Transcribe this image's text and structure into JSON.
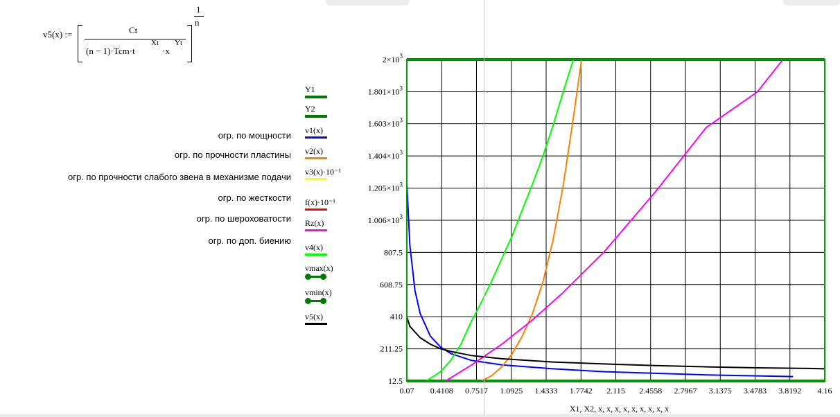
{
  "formula": {
    "lhs": "v5(x) :=",
    "numerator": "Ct",
    "denominator_main": "(n − 1)·Tcm·t",
    "exp_t": "Xt",
    "mid": "·x",
    "exp_x": "Yt",
    "outer_num": "1",
    "outer_den": "n"
  },
  "annotations": [
    {
      "text": "огр. по мощности",
      "series": "v1(x)"
    },
    {
      "text": "огр. по прочности пластины",
      "series": "v2(x)"
    },
    {
      "text": "огр. по прочности слабого звена в механизме подачи",
      "series": "v3(x)·10⁻¹"
    },
    {
      "text": "огр. по жесткости",
      "series": "f(x)·10⁻¹"
    },
    {
      "text": "огр. по шероховатости",
      "series": "Rz(x)"
    },
    {
      "text": "огр. по доп. биению",
      "series": "v4(x)"
    }
  ],
  "legend": [
    {
      "label": "Y1",
      "color": "#007a00",
      "style": "thick"
    },
    {
      "label": "Y2",
      "color": "#007a00",
      "style": "thick"
    },
    {
      "label": "v1(x)",
      "color": "#0000ff",
      "style": "line"
    },
    {
      "label": "v2(x)",
      "color": "#ff8000",
      "style": "line"
    },
    {
      "label": "v3(x)·10⁻¹",
      "color": "#ffff00",
      "style": "line"
    },
    {
      "label": "f(x)·10⁻¹",
      "color": "#ff0000",
      "style": "line"
    },
    {
      "label": "Rz(x)",
      "color": "#ff00ff",
      "style": "line"
    },
    {
      "label": "v4(x)",
      "color": "#00ff00",
      "style": "line"
    },
    {
      "label": "vmax(x)",
      "color": "#007a00",
      "style": "dots"
    },
    {
      "label": "vmin(x)",
      "color": "#007a00",
      "style": "dots"
    },
    {
      "label": "v5(x)",
      "color": "#000000",
      "style": "line"
    }
  ],
  "chart_data": {
    "type": "line",
    "xlabel": "X1, X2, x, x, x, x, x, x, x, x, x",
    "xlim": [
      0.07,
      4.16
    ],
    "ylim": [
      12.5,
      2000
    ],
    "xticks": [
      0.07,
      0.4108,
      0.7517,
      1.0925,
      1.4333,
      1.7742,
      2.115,
      2.4558,
      2.7967,
      3.1375,
      3.4783,
      3.8192,
      4.16
    ],
    "xtick_labels": [
      "0.07",
      "0.4108",
      "0.7517",
      "1.0925",
      "1.4333",
      "1.7742",
      "2.115",
      "2.4558",
      "2.7967",
      "3.1375",
      "3.4783",
      "3.8192",
      "4.16"
    ],
    "yticks": [
      12.5,
      211.25,
      410,
      608.75,
      807.5,
      1006,
      1205,
      1404,
      1603,
      1801,
      2000
    ],
    "ytick_labels": [
      {
        "base": "12.5",
        "exp": ""
      },
      {
        "base": "211.25",
        "exp": ""
      },
      {
        "base": "410",
        "exp": ""
      },
      {
        "base": "608.75",
        "exp": ""
      },
      {
        "base": "807.5",
        "exp": ""
      },
      {
        "base": "1.006×10",
        "exp": "3"
      },
      {
        "base": "1.205×10",
        "exp": "3"
      },
      {
        "base": "1.404×10",
        "exp": "3"
      },
      {
        "base": "1.603×10",
        "exp": "3"
      },
      {
        "base": "1.801×10",
        "exp": "3"
      },
      {
        "base": "2×10",
        "exp": "3"
      }
    ],
    "grid": true,
    "series": [
      {
        "name": "Y1",
        "color": "#007a00",
        "width": 4,
        "x": [
          0.07,
          4.16
        ],
        "y": [
          2000,
          2000
        ]
      },
      {
        "name": "Y2",
        "color": "#007a00",
        "width": 4,
        "x": [
          0.07,
          4.16
        ],
        "y": [
          12.5,
          12.5
        ]
      },
      {
        "name": "v1(x)",
        "color": "#0000ff",
        "width": 2,
        "x": [
          0.07,
          0.1,
          0.15,
          0.2,
          0.3,
          0.4,
          0.5,
          0.7,
          1.0,
          1.5,
          2.0,
          2.5,
          3.0,
          3.5,
          3.85
        ],
        "y": [
          1240,
          850,
          570,
          430,
          290,
          222,
          182,
          140,
          112,
          88,
          70,
          60,
          50,
          44,
          40
        ]
      },
      {
        "name": "v2(x)",
        "color": "#ff8000",
        "width": 2,
        "x": [
          0.8,
          0.9,
          1.0,
          1.1,
          1.2,
          1.3,
          1.4,
          1.5,
          1.6,
          1.7,
          1.78
        ],
        "y": [
          12.5,
          45,
          100,
          180,
          290,
          430,
          620,
          880,
          1220,
          1640,
          2000
        ]
      },
      {
        "name": "Rz(x)",
        "color": "#ff00ff",
        "width": 2,
        "x": [
          0.45,
          0.7,
          1.0,
          1.3,
          1.6,
          2.0,
          2.5,
          3.0,
          3.5,
          3.75
        ],
        "y": [
          12.5,
          110,
          240,
          390,
          560,
          810,
          1180,
          1580,
          1800,
          2000
        ]
      },
      {
        "name": "v4(x)",
        "color": "#00ff00",
        "width": 2,
        "x": [
          0.26,
          0.4,
          0.5,
          0.6,
          0.7,
          0.8,
          0.9,
          1.0,
          1.1,
          1.2,
          1.3,
          1.4,
          1.5,
          1.6,
          1.7
        ],
        "y": [
          12.5,
          70,
          140,
          240,
          380,
          500,
          630,
          770,
          910,
          1070,
          1230,
          1400,
          1590,
          1800,
          2000
        ]
      },
      {
        "name": "v5(x)",
        "color": "#000000",
        "width": 2,
        "x": [
          0.07,
          0.1,
          0.2,
          0.3,
          0.4,
          0.5,
          0.7,
          1.0,
          1.5,
          2.0,
          2.5,
          3.0,
          3.5,
          4.0,
          4.16
        ],
        "y": [
          410,
          350,
          280,
          240,
          212,
          195,
          170,
          150,
          130,
          118,
          108,
          100,
          94,
          90,
          88
        ]
      }
    ]
  }
}
